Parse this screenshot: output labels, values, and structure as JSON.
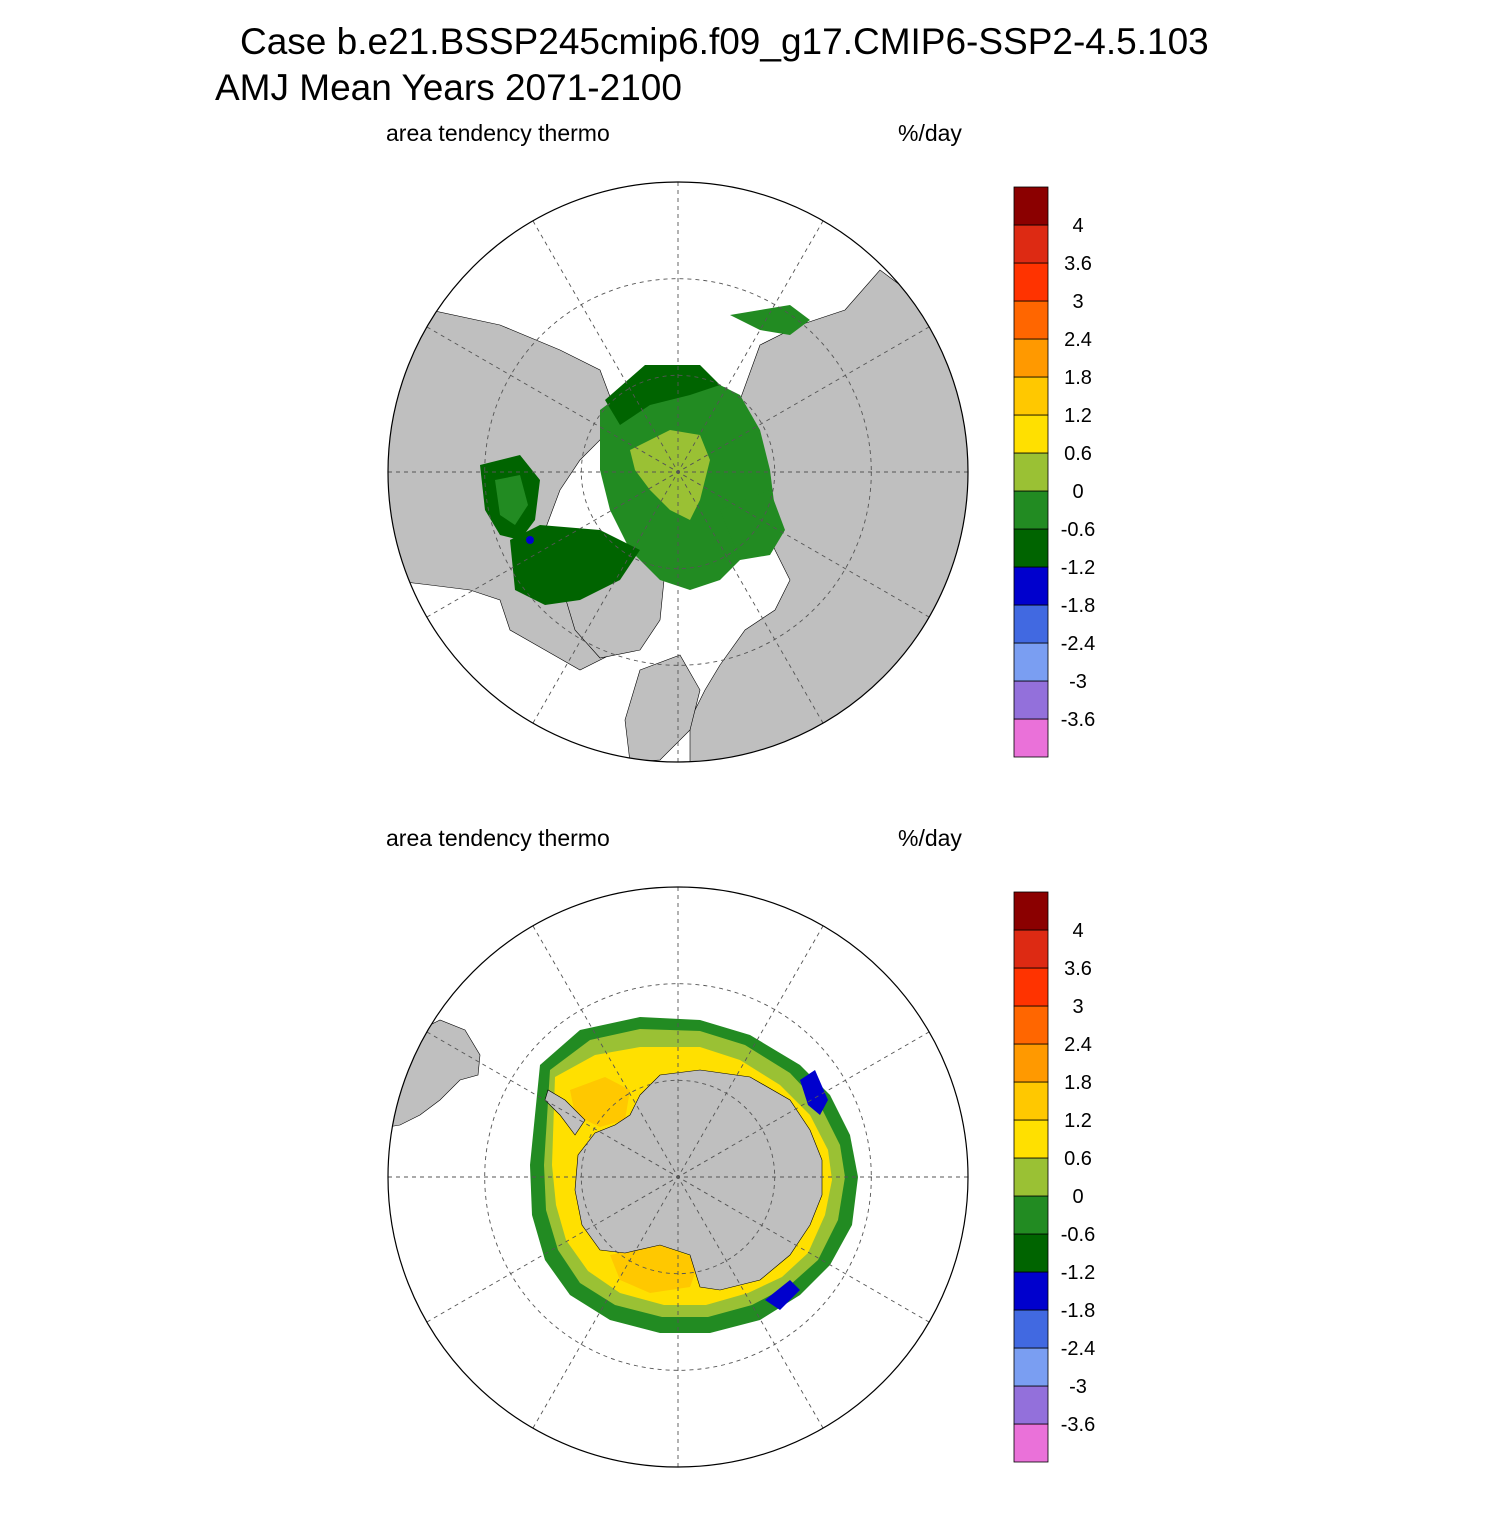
{
  "title": {
    "line1": "Case b.e21.BSSP245cmip6.f09_g17.CMIP6-SSP2-4.5.103",
    "line2": "AMJ Mean   Years 2071-2100"
  },
  "panels": [
    {
      "id": "north",
      "variable": "area tendency thermo",
      "units": "%/day",
      "hemisphere": "Northern Hemisphere polar stereographic"
    },
    {
      "id": "south",
      "variable": "area tendency thermo",
      "units": "%/day",
      "hemisphere": "Southern Hemisphere polar stereographic"
    }
  ],
  "colorbar": {
    "colors": [
      "#ea71d9",
      "#9370db",
      "#7a9ef2",
      "#4169e1",
      "#0000cd",
      "#006400",
      "#228b22",
      "#9ac134",
      "#ffe000",
      "#ffc800",
      "#ff9900",
      "#ff6600",
      "#ff3300",
      "#dd2a13",
      "#8b0000"
    ],
    "labels": [
      "-3.6",
      "-3",
      "-2.4",
      "-1.8",
      "-1.2",
      "-0.6",
      "0",
      "0.6",
      "1.2",
      "1.8",
      "2.4",
      "3",
      "3.6",
      "4"
    ]
  },
  "colors": {
    "land": "#bfbfbf",
    "ocean": "#ffffff",
    "grid": "#555555"
  }
}
